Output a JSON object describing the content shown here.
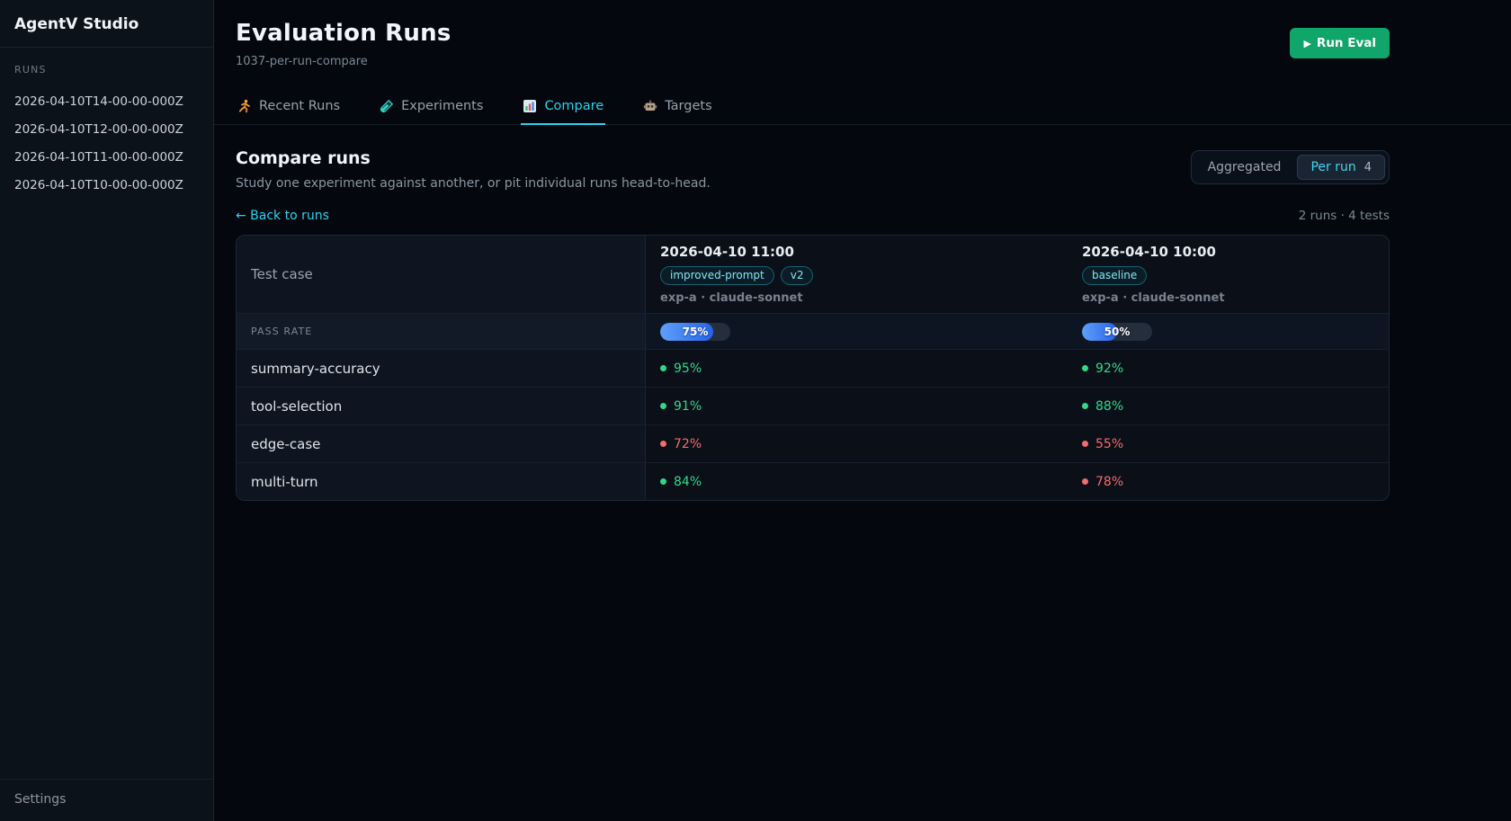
{
  "app": {
    "title": "AgentV Studio"
  },
  "sidebar": {
    "section_label": "RUNS",
    "runs": [
      "2026-04-10T14-00-00-000Z",
      "2026-04-10T12-00-00-000Z",
      "2026-04-10T11-00-00-000Z",
      "2026-04-10T10-00-00-000Z"
    ],
    "settings_label": "Settings"
  },
  "header": {
    "title": "Evaluation Runs",
    "subtitle": "1037-per-run-compare",
    "run_eval": {
      "icon": "play-icon",
      "label": "Run Eval"
    }
  },
  "tabs": [
    {
      "label": "Recent Runs",
      "icon": "runner-icon",
      "active": false
    },
    {
      "label": "Experiments",
      "icon": "test-tube-icon",
      "active": false
    },
    {
      "label": "Compare",
      "icon": "bar-chart-icon",
      "active": true
    },
    {
      "label": "Targets",
      "icon": "robot-icon",
      "active": false
    }
  ],
  "compare": {
    "title": "Compare runs",
    "subtitle": "Study one experiment against another, or pit individual runs head-to-head.",
    "toggle": {
      "inactive_label": "Aggregated",
      "active_label": "Per run",
      "active_count": "4"
    },
    "back_link": "← Back to runs",
    "summary": "2 runs · 4 tests"
  },
  "table": {
    "corner_label": "Test case",
    "pass_rate_label": "PASS RATE",
    "runs": [
      {
        "timestamp": "2026-04-10 11:00",
        "tags": [
          "improved-prompt",
          "v2"
        ],
        "meta": "exp-a · claude-sonnet",
        "pass_rate": 75,
        "pass_rate_pct": "75%"
      },
      {
        "timestamp": "2026-04-10 10:00",
        "tags": [
          "baseline"
        ],
        "meta": "exp-a · claude-sonnet",
        "pass_rate": 50,
        "pass_rate_pct": "50%"
      }
    ],
    "rows": [
      {
        "test": "summary-accuracy",
        "values": [
          {
            "pct": "95%",
            "status": "pass"
          },
          {
            "pct": "92%",
            "status": "pass"
          }
        ]
      },
      {
        "test": "tool-selection",
        "values": [
          {
            "pct": "91%",
            "status": "pass"
          },
          {
            "pct": "88%",
            "status": "pass"
          }
        ]
      },
      {
        "test": "edge-case",
        "values": [
          {
            "pct": "72%",
            "status": "fail"
          },
          {
            "pct": "55%",
            "status": "fail"
          }
        ]
      },
      {
        "test": "multi-turn",
        "values": [
          {
            "pct": "84%",
            "status": "pass"
          },
          {
            "pct": "78%",
            "status": "fail"
          }
        ]
      }
    ]
  },
  "colors": {
    "accent_cyan": "#2bd2ec",
    "pass_green": "#30d98a",
    "fail_red": "#f46b6d",
    "bar_fill_start": "#5fa0f8",
    "bar_fill_end": "#2563eb",
    "button_green": "#10a569"
  }
}
